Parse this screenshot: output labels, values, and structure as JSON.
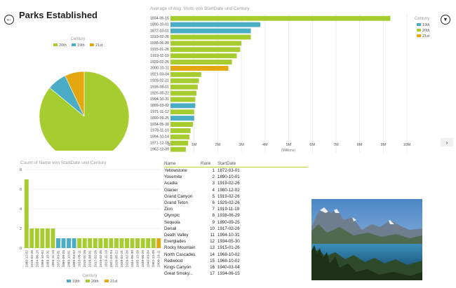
{
  "header": {
    "title": "Parks Established",
    "back_icon": "back-arrow-icon",
    "filter_icon": "filter-icon",
    "next_icon": "chevron-right-icon"
  },
  "colors": {
    "c19": "#4bacc6",
    "c20": "#a6cc2f",
    "c21": "#e5a710",
    "grid": "#e2e2e2"
  },
  "chart_data": [
    {
      "type": "pie",
      "legend_title": "Century",
      "legend": [
        "20th",
        "19th",
        "21st"
      ],
      "slices": [
        {
          "label": "20th",
          "value": 86
        },
        {
          "label": "19th",
          "value": 7
        },
        {
          "label": "21st",
          "value": 7
        }
      ]
    },
    {
      "type": "bar",
      "orientation": "horizontal",
      "title": "Average of Avg. Visits von StartDate und Century",
      "legend_title": "Century",
      "legend": [
        "19th",
        "20th",
        "21st"
      ],
      "xlabel": "(Millions)",
      "xlim": [
        0,
        10
      ],
      "ticks": [
        "0M",
        "1M",
        "2M",
        "3M",
        "4M",
        "5M",
        "6M",
        "7M",
        "8M",
        "9M",
        "10M"
      ],
      "bars": [
        {
          "label": "1934-06-15",
          "value": 9.3,
          "century": "20th"
        },
        {
          "label": "1890-10-01",
          "value": 3.8,
          "century": "19th"
        },
        {
          "label": "1872-03-01",
          "value": 3.4,
          "century": "19th"
        },
        {
          "label": "1919-02-26",
          "value": 3.4,
          "century": "20th"
        },
        {
          "label": "1938-06-29",
          "value": 3.0,
          "century": "20th"
        },
        {
          "label": "1915-01-26",
          "value": 2.95,
          "century": "20th"
        },
        {
          "label": "1919-11-19",
          "value": 2.8,
          "century": "20th"
        },
        {
          "label": "1929-02-26",
          "value": 2.6,
          "century": "20th"
        },
        {
          "label": "2000-10-11",
          "value": 2.45,
          "century": "21st"
        },
        {
          "label": "1921-03-04",
          "value": 1.3,
          "century": "20th"
        },
        {
          "label": "1928-02-21",
          "value": 1.2,
          "century": "20th"
        },
        {
          "label": "1916-08-01",
          "value": 1.15,
          "century": "20th"
        },
        {
          "label": "1926-05-22",
          "value": 1.1,
          "century": "20th"
        },
        {
          "label": "1994-10-31",
          "value": 1.05,
          "century": "20th"
        },
        {
          "label": "1899-03-02",
          "value": 1.05,
          "century": "19th"
        },
        {
          "label": "1971-11-12",
          "value": 1.0,
          "century": "20th"
        },
        {
          "label": "1890-09-25",
          "value": 1.0,
          "century": "19th"
        },
        {
          "label": "1934-05-30",
          "value": 0.95,
          "century": "20th"
        },
        {
          "label": "1978-11-10",
          "value": 0.85,
          "century": "20th"
        },
        {
          "label": "1994-10-14",
          "value": 0.8,
          "century": "20th"
        },
        {
          "label": "1971-12-18",
          "value": 0.75,
          "century": "20th"
        },
        {
          "label": "1962-12-09",
          "value": 0.65,
          "century": "20th"
        }
      ]
    },
    {
      "type": "bar",
      "orientation": "vertical",
      "title": "Count of Name von StartDate und Century",
      "legend_title": "Century",
      "legend": [
        "19th",
        "20th",
        "21st"
      ],
      "ylim": [
        0,
        8
      ],
      "yticks": [
        0,
        2,
        4,
        6,
        8
      ],
      "bars": [
        {
          "label": "1980-12-02",
          "value": 7,
          "century": "20th"
        },
        {
          "label": "1919-02-26",
          "value": 2,
          "century": "20th"
        },
        {
          "label": "1934-06-15",
          "value": 2,
          "century": "20th"
        },
        {
          "label": "1968-10-02",
          "value": 2,
          "century": "20th"
        },
        {
          "label": "1999-10-31",
          "value": 2,
          "century": "20th"
        },
        {
          "label": "1994-11-10",
          "value": 2,
          "century": "20th"
        },
        {
          "label": "1872-03-01",
          "value": 1,
          "century": "19th"
        },
        {
          "label": "1890-09-25",
          "value": 1,
          "century": "19th"
        },
        {
          "label": "1890-10-01",
          "value": 1,
          "century": "19th"
        },
        {
          "label": "1899-03-02",
          "value": 1,
          "century": "19th"
        },
        {
          "label": "1910-05-11",
          "value": 1,
          "century": "20th"
        },
        {
          "label": "1915-01-26",
          "value": 1,
          "century": "20th"
        },
        {
          "label": "1916-08-01",
          "value": 1,
          "century": "20th"
        },
        {
          "label": "1917-02-26",
          "value": 1,
          "century": "20th"
        },
        {
          "label": "1919-02-26",
          "value": 1,
          "century": "20th"
        },
        {
          "label": "1919-11-19",
          "value": 1,
          "century": "20th"
        },
        {
          "label": "1921-03-04",
          "value": 1,
          "century": "20th"
        },
        {
          "label": "1926-05-22",
          "value": 1,
          "century": "20th"
        },
        {
          "label": "1928-02-21",
          "value": 1,
          "century": "20th"
        },
        {
          "label": "1929-02-26",
          "value": 1,
          "century": "20th"
        },
        {
          "label": "1934-05-30",
          "value": 1,
          "century": "20th"
        },
        {
          "label": "1935-12-26",
          "value": 1,
          "century": "20th"
        },
        {
          "label": "1938-06-29",
          "value": 1,
          "century": "20th"
        },
        {
          "label": "1940-03-04",
          "value": 1,
          "century": "20th"
        },
        {
          "label": "1962-12-09",
          "value": 1,
          "century": "20th"
        },
        {
          "label": "2000-10-11",
          "value": 1,
          "century": "21st"
        }
      ]
    }
  ],
  "table": {
    "columns": [
      "Name",
      "Rank",
      "StartDate"
    ],
    "rows": [
      [
        "Yellowstone",
        "1",
        "1872-03-01"
      ],
      [
        "Yosemite",
        "2",
        "1890-10-01"
      ],
      [
        "Acadia",
        "3",
        "1919-02-26"
      ],
      [
        "Glacier",
        "4",
        "1980-12-02"
      ],
      [
        "Grand Canyon",
        "5",
        "1919-02-26"
      ],
      [
        "Grand Teton",
        "6",
        "1929-02-26"
      ],
      [
        "Zion",
        "7",
        "1919-11-19"
      ],
      [
        "Olympic",
        "8",
        "1938-06-29"
      ],
      [
        "Sequoia",
        "9",
        "1890-09-25"
      ],
      [
        "Denali",
        "10",
        "1917-02-26"
      ],
      [
        "Death Valley",
        "11",
        "1994-10-31"
      ],
      [
        "Everglades",
        "12",
        "1934-05-30"
      ],
      [
        "Rocky Mountain",
        "13",
        "1915-01-26"
      ],
      [
        "North Cascades",
        "14",
        "1968-10-02"
      ],
      [
        "Redwood",
        "15",
        "1968-10-02"
      ],
      [
        "Kings Canyon",
        "16",
        "1940-03-04"
      ],
      [
        "Great Smoky...",
        "17",
        "1934-06-15"
      ]
    ]
  },
  "photo": {
    "subject": "mountain-lake-photo"
  }
}
